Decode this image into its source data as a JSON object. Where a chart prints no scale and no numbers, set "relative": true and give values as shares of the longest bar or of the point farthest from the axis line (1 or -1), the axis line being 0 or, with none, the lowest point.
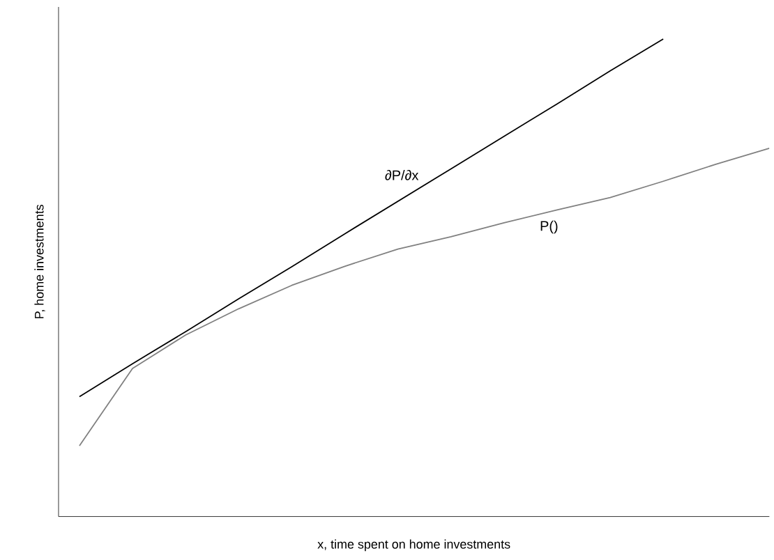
{
  "chart_data": {
    "type": "line",
    "relative": true,
    "xlabel": "x, time spent on home investments",
    "ylabel": "P, home investments",
    "categories": [
      null,
      null,
      null,
      null,
      null,
      null,
      null,
      null,
      null,
      null,
      null,
      null,
      null,
      null
    ],
    "series": [
      {
        "name": "∂P/∂x",
        "color": "#000000",
        "values": [
          0.251,
          0.32,
          0.387,
          0.456,
          0.523,
          0.592,
          0.66,
          0.728,
          0.796,
          0.864,
          0.933,
          1.0,
          null,
          null
        ]
      },
      {
        "name": "P()",
        "color": "#808080",
        "values": [
          0.148,
          0.31,
          0.38,
          0.435,
          0.484,
          0.524,
          0.56,
          0.586,
          0.615,
          0.642,
          0.668,
          0.702,
          0.738,
          0.771
        ]
      }
    ]
  }
}
